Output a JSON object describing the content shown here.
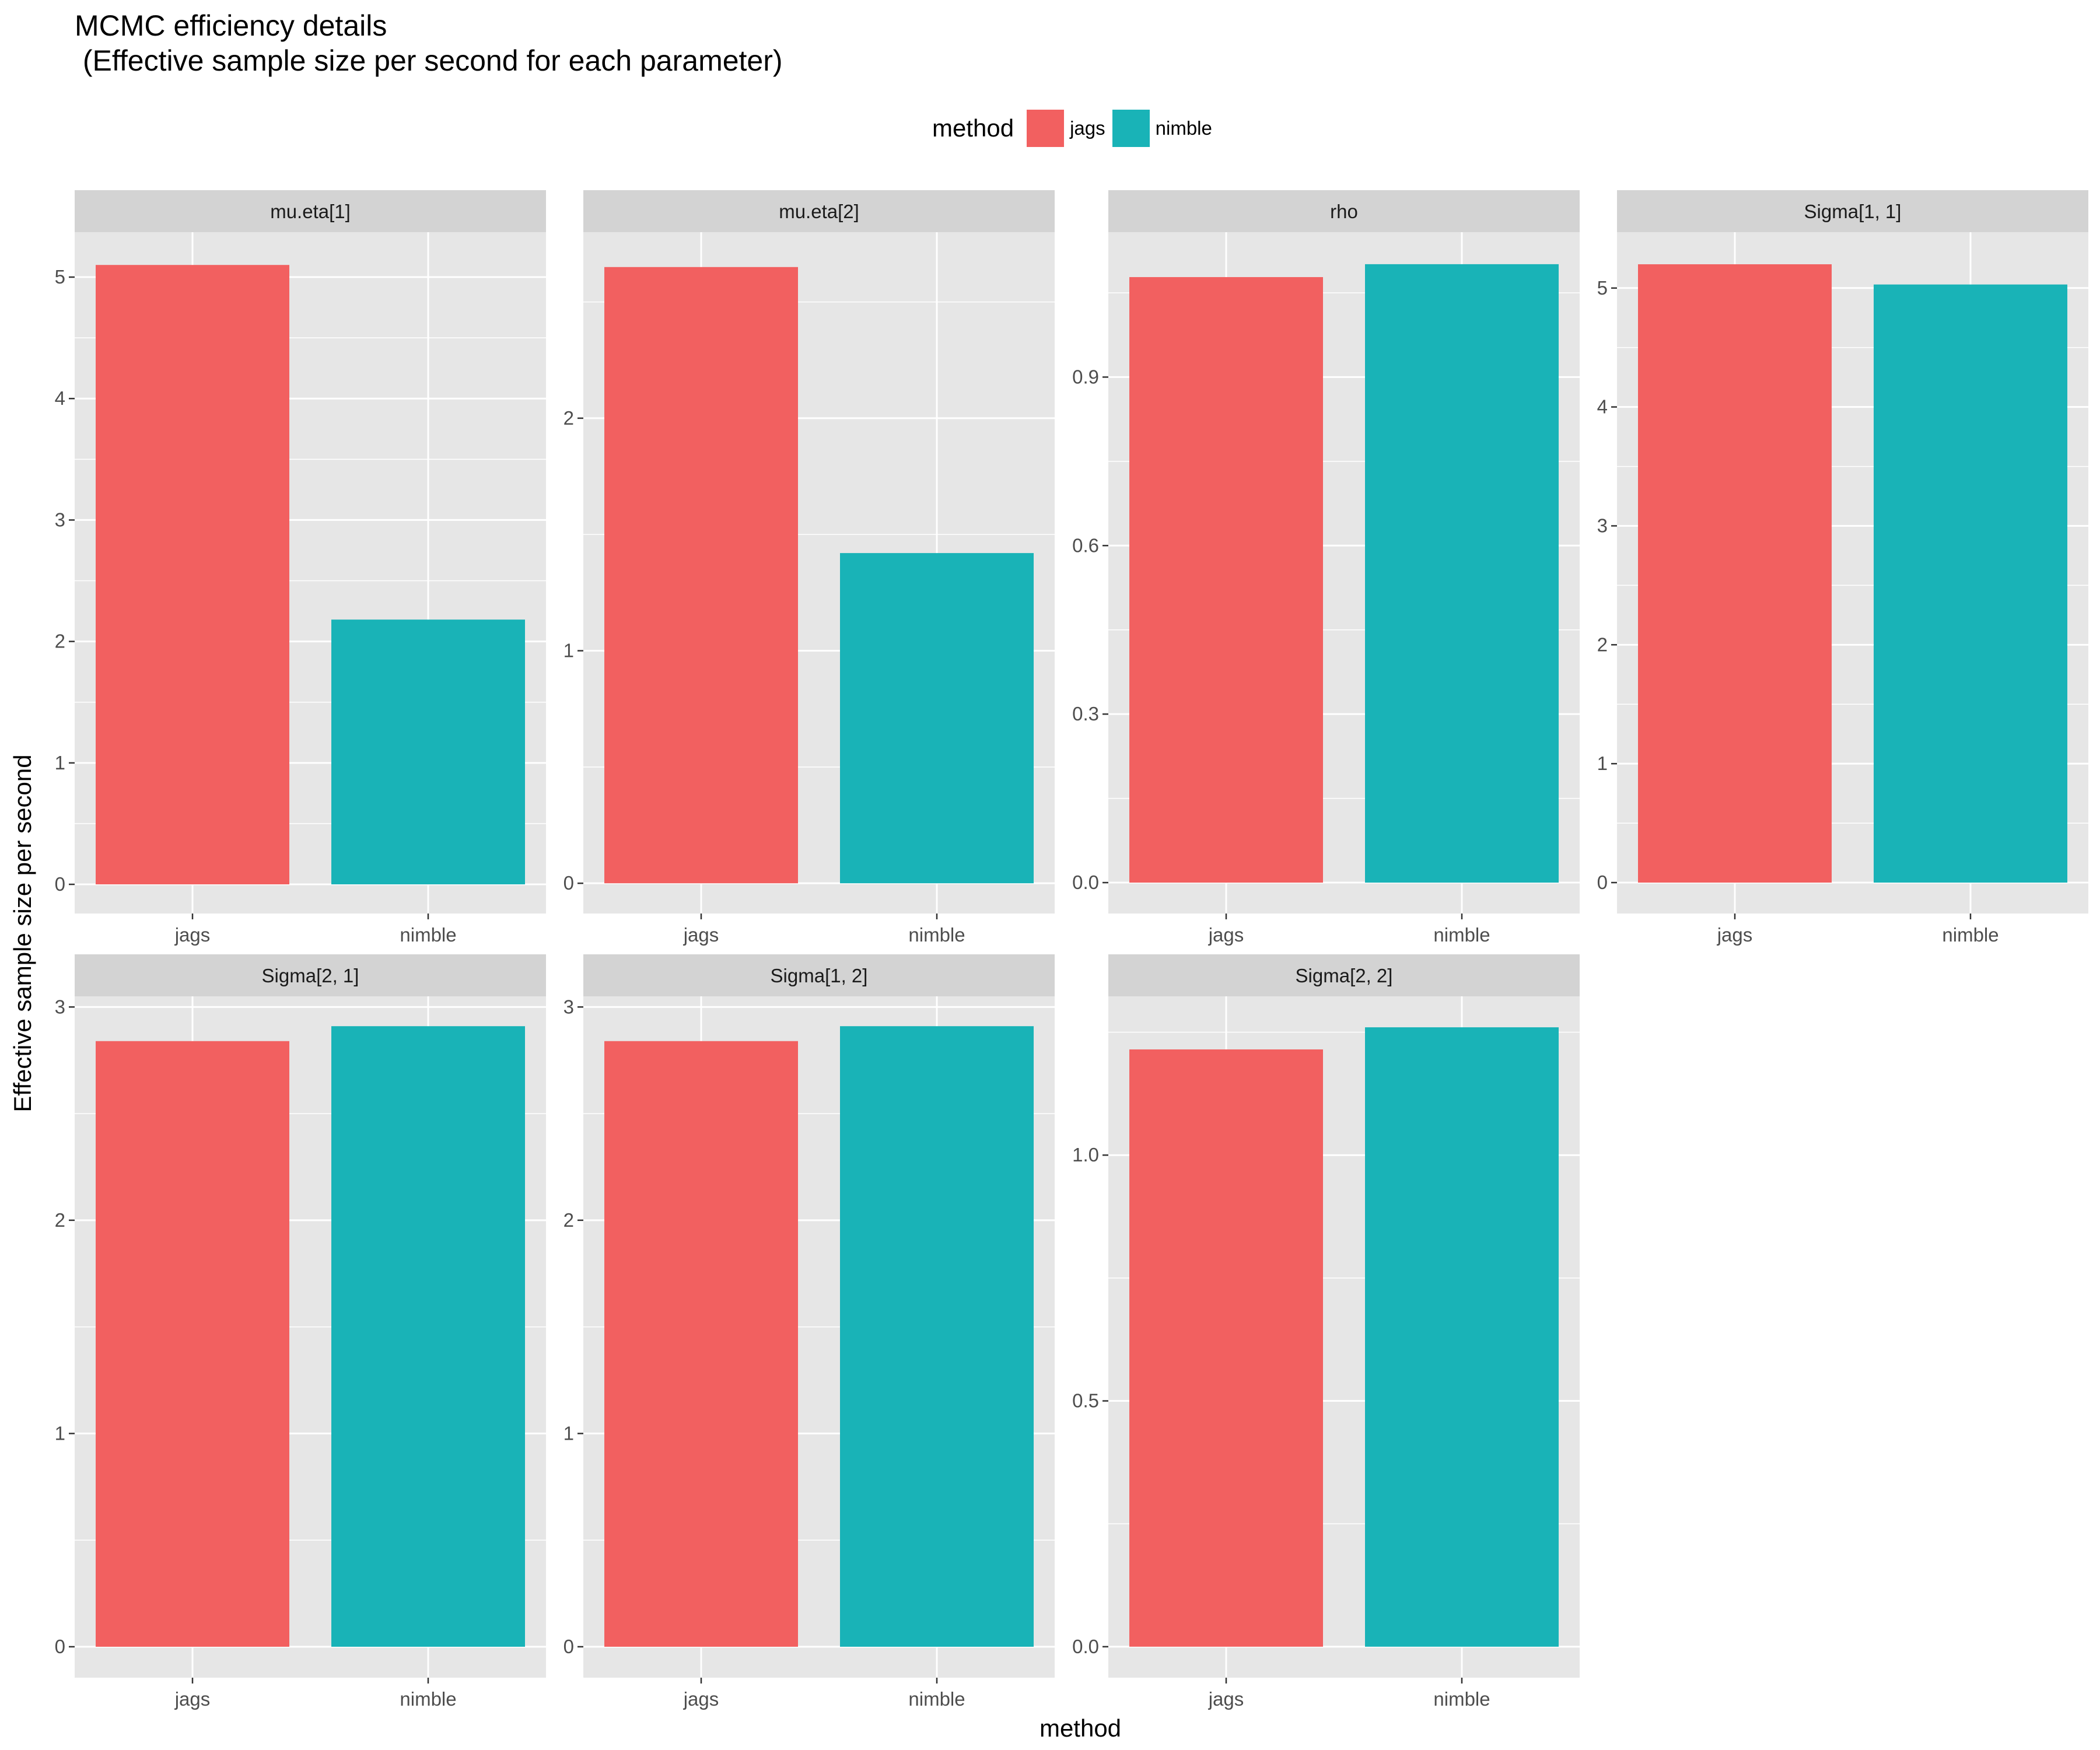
{
  "title": {
    "line1": "MCMC efficiency details",
    "line2": " (Effective sample size per second for each parameter)"
  },
  "legend": {
    "title": "method",
    "items": [
      {
        "label": "jags",
        "color": "#F26060"
      },
      {
        "label": "nimble",
        "color": "#19B3B7"
      }
    ]
  },
  "colors": {
    "panel_bg": "#E6E6E6",
    "strip_bg": "#D3D3D3",
    "grid": "#FFFFFF",
    "jags": "#F26060",
    "nimble": "#19B3B7"
  },
  "chart_data": {
    "type": "bar",
    "layout": "faceted grid, 4 columns x 2 rows, free y scales",
    "xlabel": "method",
    "ylabel": "Effective sample size per second",
    "categories": [
      "jags",
      "nimble"
    ],
    "legend_position": "top",
    "grid": true,
    "facets": [
      {
        "name": "mu.eta[1]",
        "values": [
          5.1,
          2.18
        ],
        "ylim": [
          -0.24,
          5.37
        ],
        "yticks": [
          0,
          1,
          2,
          3,
          4,
          5
        ],
        "tick_labels": [
          "0",
          "1",
          "2",
          "3",
          "4",
          "5"
        ]
      },
      {
        "name": "mu.eta[2]",
        "values": [
          2.65,
          1.42
        ],
        "ylim": [
          -0.13,
          2.8
        ],
        "yticks": [
          0,
          1,
          2
        ],
        "tick_labels": [
          "0",
          "1",
          "2"
        ]
      },
      {
        "name": "rho",
        "values": [
          1.078,
          1.101
        ],
        "ylim": [
          -0.055,
          1.158
        ],
        "yticks": [
          0.0,
          0.3,
          0.6,
          0.9
        ],
        "tick_labels": [
          "0.0",
          "0.3",
          "0.6",
          "0.9"
        ]
      },
      {
        "name": "Sigma[1, 1]",
        "values": [
          5.2,
          5.03
        ],
        "ylim": [
          -0.26,
          5.47
        ],
        "yticks": [
          0,
          1,
          2,
          3,
          4,
          5
        ],
        "tick_labels": [
          "0",
          "1",
          "2",
          "3",
          "4",
          "5"
        ]
      },
      {
        "name": "Sigma[2, 1]",
        "values": [
          2.84,
          2.91
        ],
        "ylim": [
          -0.145,
          3.05
        ],
        "yticks": [
          0,
          1,
          2,
          3
        ],
        "tick_labels": [
          "0",
          "1",
          "2",
          "3"
        ]
      },
      {
        "name": "Sigma[1, 2]",
        "values": [
          2.84,
          2.91
        ],
        "ylim": [
          -0.145,
          3.05
        ],
        "yticks": [
          0,
          1,
          2,
          3
        ],
        "tick_labels": [
          "0",
          "1",
          "2",
          "3"
        ]
      },
      {
        "name": "Sigma[2, 2]",
        "values": [
          1.215,
          1.26
        ],
        "ylim": [
          -0.063,
          1.323
        ],
        "yticks": [
          0.0,
          0.5,
          1.0
        ],
        "tick_labels": [
          "0.0",
          "0.5",
          "1.0"
        ]
      }
    ]
  }
}
